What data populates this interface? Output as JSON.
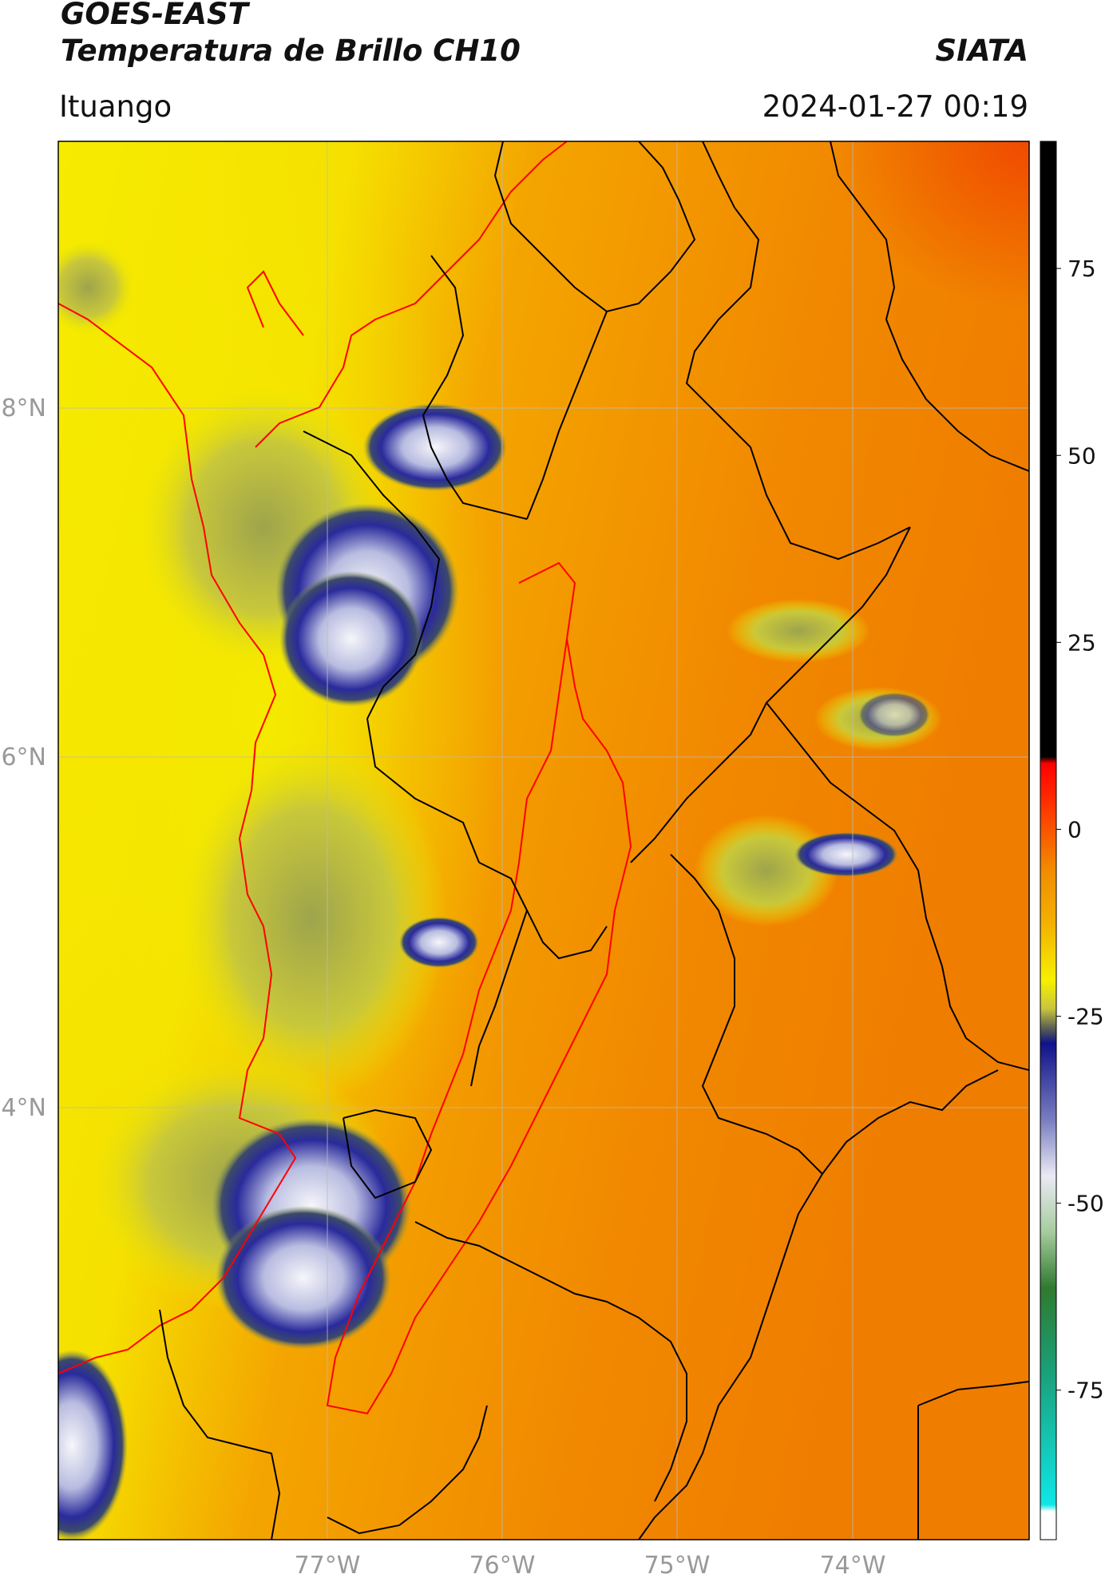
{
  "header": {
    "line1": "GOES-EAST",
    "line2": "Temperatura de Brillo CH10",
    "agency": "SIATA",
    "location": "Ituango",
    "datetime": "2024-01-27 00:19"
  },
  "map": {
    "lon_range": [
      -78.55,
      -73.1
    ],
    "lat_range": [
      1.6,
      9.55
    ],
    "lat_ticks": [
      "8°N",
      "6°N",
      "4°N"
    ],
    "lon_ticks": [
      "77°W",
      "76°W",
      "75°W",
      "74°W"
    ],
    "colors": {
      "warm_orange": "#f28a00",
      "hot_orange": "#f04a00",
      "yellow": "#f5ee00",
      "olive": "#a3a84a",
      "cloud_blue": "#1a1a8c",
      "cloud_white": "#f4f4f8",
      "border_black": "#000000",
      "border_red": "#ff0000"
    }
  },
  "colorbar": {
    "ticks": [
      "75",
      "50",
      "25",
      "0",
      "-25",
      "-50",
      "-75"
    ],
    "tick_values": [
      75,
      50,
      25,
      0,
      -25,
      -50,
      -75
    ],
    "range": [
      -95,
      92
    ]
  }
}
